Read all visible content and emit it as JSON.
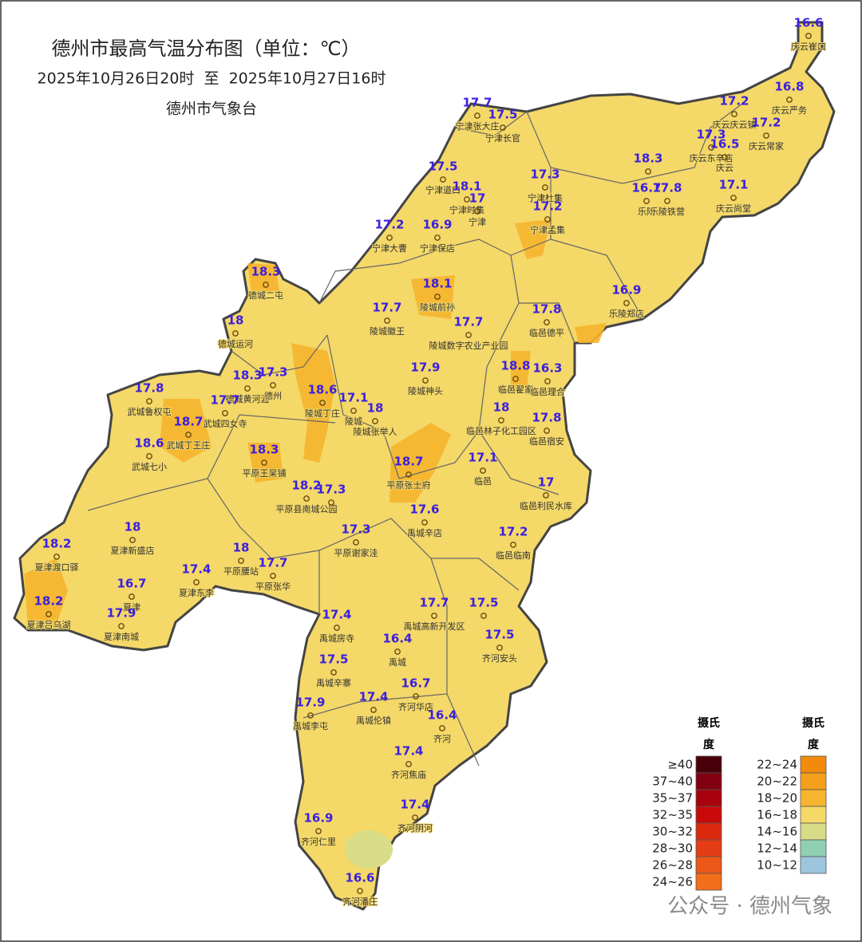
{
  "header": {
    "title": "德州市最高气温分布图（单位：℃）",
    "subtitle": "2025年10月26日20时  至  2025年10月27日16时",
    "agency": "德州市气象台"
  },
  "stations": [
    {
      "value": 16.6,
      "name": "庆云崔口"
    },
    {
      "value": 16.8,
      "name": "庆云严务"
    },
    {
      "value": 17.2,
      "name": "庆云庆云镇"
    },
    {
      "value": 17.2,
      "name": "庆云常家"
    },
    {
      "value": 17.3,
      "name": "庆云东辛店"
    },
    {
      "value": 16.5,
      "name": "庆云"
    },
    {
      "value": 17.1,
      "name": "庆云尚堂"
    },
    {
      "value": 18.3
    },
    {
      "value": 16.7,
      "name": "乐陵"
    },
    {
      "value": 17.8,
      "name": "乐陵铁营"
    },
    {
      "value": 16.9,
      "name": "乐陵郑店"
    },
    {
      "value": 17.7,
      "name": "宁津张大庄"
    },
    {
      "value": 17.5,
      "name": "宁津长官"
    },
    {
      "value": 17.5,
      "name": "宁津道口"
    },
    {
      "value": 18.1,
      "name": "宁津时集"
    },
    {
      "value": 17,
      "name": "宁津"
    },
    {
      "value": 17.3,
      "name": "宁津杜集"
    },
    {
      "value": 17.2,
      "name": "宁津孟集"
    },
    {
      "value": 17.2,
      "name": "宁津大曹"
    },
    {
      "value": 16.9,
      "name": "宁津保店"
    },
    {
      "value": 18.3,
      "name": "德城二屯"
    },
    {
      "value": 18,
      "name": "德城运河"
    },
    {
      "value": 18.1,
      "name": "陵城前孙"
    },
    {
      "value": 17.7,
      "name": "陵城徽王"
    },
    {
      "value": 17.7,
      "name": "陵城数字农业产业园"
    },
    {
      "value": 17.8,
      "name": "临邑德平"
    },
    {
      "value": 17.9,
      "name": "陵城神头"
    },
    {
      "value": 18.8,
      "name": "临邑翟家"
    },
    {
      "value": 16.3,
      "name": "临邑理合"
    },
    {
      "value": 18.3,
      "name": "德城黄河涯"
    },
    {
      "value": 17.3,
      "name": "德州"
    },
    {
      "value": 17.8,
      "name": "武城鲁权屯"
    },
    {
      "value": 18.6,
      "name": "陵城丁庄"
    },
    {
      "value": 17.1,
      "name": "陵城"
    },
    {
      "value": 18,
      "name": "陵城张举人"
    },
    {
      "value": 17.7,
      "name": "武城四女寺"
    },
    {
      "value": 18,
      "name": "临邑林子化工园区"
    },
    {
      "value": 17.8,
      "name": "临邑宿安"
    },
    {
      "value": 18.7,
      "name": "武城丁王庄"
    },
    {
      "value": 18.6,
      "name": "武城七小"
    },
    {
      "value": 18.3,
      "name": "平原王杲铺"
    },
    {
      "value": 18.7,
      "name": "平原张士府"
    },
    {
      "value": 17.1,
      "name": "临邑"
    },
    {
      "value": 18.2,
      "name": "平原县南城公园"
    },
    {
      "value": 17.3
    },
    {
      "value": 17,
      "name": "临邑利民水库"
    },
    {
      "value": 17.6,
      "name": "禹城辛店"
    },
    {
      "value": 18,
      "name": "夏津新盛店"
    },
    {
      "value": 17.3,
      "name": "平原谢家洼"
    },
    {
      "value": 17.2,
      "name": "临邑临南"
    },
    {
      "value": 18.2,
      "name": "夏津渡口驿"
    },
    {
      "value": 18,
      "name": "平原腰站"
    },
    {
      "value": 17.7,
      "name": "平原张华"
    },
    {
      "value": 17.4,
      "name": "夏津东李"
    },
    {
      "value": 16.7,
      "name": "夏津"
    },
    {
      "value": 18.2,
      "name": "夏津吕乌湖"
    },
    {
      "value": 17.9,
      "name": "夏津南城"
    },
    {
      "value": 17.7,
      "name": "禹城高新开发区"
    },
    {
      "value": 17.5
    },
    {
      "value": 17.4,
      "name": "禹城房寺"
    },
    {
      "value": 17.5,
      "name": "齐河安头"
    },
    {
      "value": 16.4,
      "name": "禹城"
    },
    {
      "value": 17.5,
      "name": "禹城辛寨"
    },
    {
      "value": 16.7,
      "name": "齐河华店"
    },
    {
      "value": 17.4,
      "name": "禹城伦镇"
    },
    {
      "value": 17.9,
      "name": "禹城李屯"
    },
    {
      "value": 16.4,
      "name": "齐河"
    },
    {
      "value": 17.4,
      "name": "齐河焦庙"
    },
    {
      "value": 17.4,
      "name": "齐河阴河"
    },
    {
      "value": 16.9,
      "name": "齐河仁里"
    },
    {
      "value": 16.6,
      "name": "齐河潘庄"
    }
  ],
  "legend": {
    "left": {
      "title": [
        "摄氏",
        "度"
      ],
      "items": [
        {
          "label": "≥40",
          "color": "#4a0008"
        },
        {
          "label": "37~40",
          "color": "#80000f"
        },
        {
          "label": "35~37",
          "color": "#a8000c"
        },
        {
          "label": "32~35",
          "color": "#c80a0a"
        },
        {
          "label": "30~32",
          "color": "#dc2a10"
        },
        {
          "label": "28~30",
          "color": "#e43c14"
        },
        {
          "label": "26~28",
          "color": "#ec5818"
        },
        {
          "label": "24~26",
          "color": "#f26e1a"
        }
      ]
    },
    "right": {
      "title": [
        "摄氏",
        "度"
      ],
      "items": [
        {
          "label": "22~24",
          "color": "#f28a0c"
        },
        {
          "label": "20~22",
          "color": "#f5a01c"
        },
        {
          "label": "18~20",
          "color": "#f6b52e"
        },
        {
          "label": "16~18",
          "color": "#f4d868"
        },
        {
          "label": "14~16",
          "color": "#d8dc86"
        },
        {
          "label": "12~14",
          "color": "#8fd0b2"
        },
        {
          "label": "10~12",
          "color": "#9cc6de"
        }
      ]
    }
  },
  "watermark": "公众号 · 德州气象"
}
